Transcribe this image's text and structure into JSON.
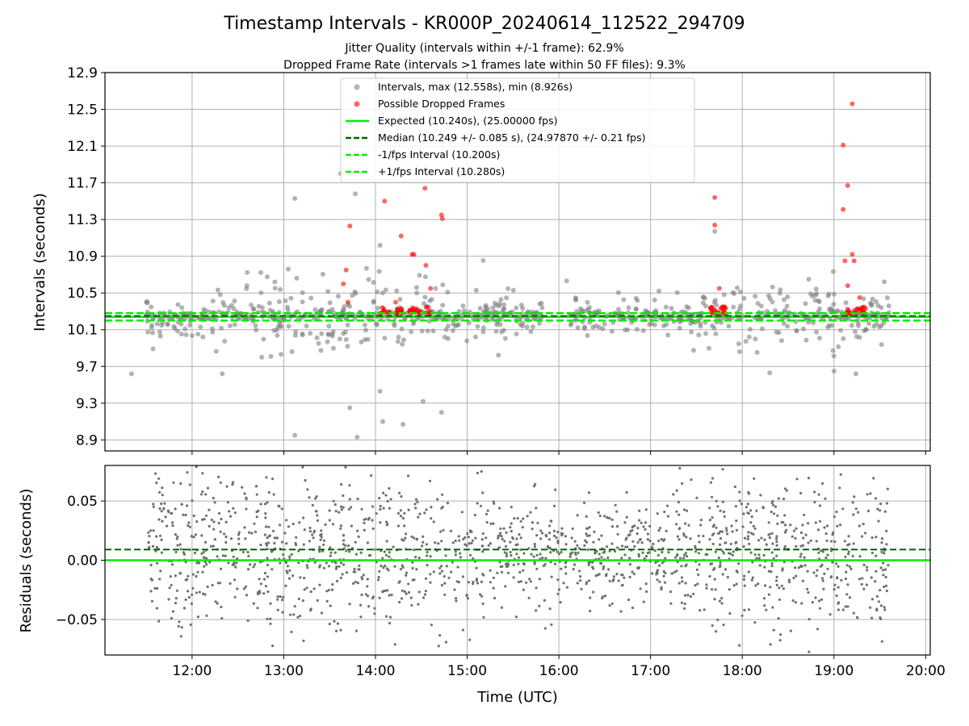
{
  "chart_data": [
    {
      "type": "scatter",
      "title": "Timestamp Intervals - KR000P_20240614_112522_294709",
      "subtitle_1": "Jitter Quality (intervals within +/-1 frame): 62.9%",
      "subtitle_2": "Dropped Frame Rate (intervals >1 frames late within 50 FF files): 9.3%",
      "ylabel": "Intervals (seconds)",
      "ylim": [
        8.78,
        12.9
      ],
      "yticks": [
        8.9,
        9.3,
        9.7,
        10.1,
        10.5,
        10.9,
        11.3,
        11.7,
        12.1,
        12.5,
        12.9
      ],
      "ytick_labels": [
        "8.9",
        "9.3",
        "9.7",
        "10.1",
        "10.5",
        "10.9",
        "11.3",
        "11.7",
        "12.1",
        "12.5",
        "12.9"
      ],
      "xlim_hours": [
        11.05,
        20.05
      ],
      "grid": true,
      "legend_placement": "top-center",
      "legend": [
        {
          "label": "Intervals, max (12.558s), min (8.926s)",
          "marker": "circle",
          "color": "#808080"
        },
        {
          "label": "Possible Dropped Frames",
          "marker": "circle",
          "color": "#ff0000"
        },
        {
          "label": "Expected (10.240s), (25.00000 fps)",
          "marker": "line-solid",
          "color": "#00ee00"
        },
        {
          "label": "Median (10.249 +/- 0.085 s), (24.97870 +/- 0.21 fps)",
          "marker": "line-dashed",
          "color": "#006400"
        },
        {
          "label": "-1/fps Interval (10.200s)",
          "marker": "line-dashed",
          "color": "#00ee00"
        },
        {
          "label": "+1/fps Interval (10.280s)",
          "marker": "line-dashed",
          "color": "#00ee00"
        }
      ],
      "reference_lines": {
        "expected": 10.24,
        "median": 10.249,
        "minus_one_fps": 10.2,
        "plus_one_fps": 10.28
      },
      "series": [
        {
          "name": "Intervals, max (12.558s), min (8.926s)",
          "color": "#808080",
          "approximate": true,
          "notable_points": [
            {
              "x_hour": 13.12,
              "y": 11.53
            },
            {
              "x_hour": 13.12,
              "y": 8.95
            },
            {
              "x_hour": 13.8,
              "y": 8.93
            },
            {
              "x_hour": 13.78,
              "y": 11.58
            },
            {
              "x_hour": 13.62,
              "y": 11.8
            },
            {
              "x_hour": 14.05,
              "y": 11.02
            },
            {
              "x_hour": 14.05,
              "y": 9.43
            },
            {
              "x_hour": 14.08,
              "y": 9.1
            },
            {
              "x_hour": 14.3,
              "y": 9.07
            },
            {
              "x_hour": 14.52,
              "y": 9.32
            },
            {
              "x_hour": 14.72,
              "y": 9.2
            },
            {
              "x_hour": 13.72,
              "y": 9.25
            },
            {
              "x_hour": 17.7,
              "y": 11.17
            },
            {
              "x_hour": 18.3,
              "y": 9.63
            },
            {
              "x_hour": 19.0,
              "y": 9.65
            },
            {
              "x_hour": 19.24,
              "y": 9.62
            },
            {
              "x_hour": 11.34,
              "y": 9.62
            },
            {
              "x_hour": 12.33,
              "y": 9.62
            }
          ]
        },
        {
          "name": "Possible Dropped Frames",
          "color": "#ff0000",
          "approximate": true,
          "points": [
            {
              "x_hour": 13.72,
              "y": 11.23
            },
            {
              "x_hour": 13.68,
              "y": 10.75
            },
            {
              "x_hour": 13.65,
              "y": 10.6
            },
            {
              "x_hour": 13.7,
              "y": 10.4
            },
            {
              "x_hour": 14.1,
              "y": 11.5
            },
            {
              "x_hour": 14.22,
              "y": 10.4
            },
            {
              "x_hour": 14.28,
              "y": 11.12
            },
            {
              "x_hour": 14.4,
              "y": 10.92
            },
            {
              "x_hour": 14.42,
              "y": 10.92
            },
            {
              "x_hour": 14.52,
              "y": 11.84
            },
            {
              "x_hour": 14.54,
              "y": 11.64
            },
            {
              "x_hour": 14.55,
              "y": 10.8
            },
            {
              "x_hour": 14.72,
              "y": 11.35
            },
            {
              "x_hour": 14.73,
              "y": 11.31
            },
            {
              "x_hour": 14.6,
              "y": 10.55
            },
            {
              "x_hour": 17.7,
              "y": 11.54
            },
            {
              "x_hour": 17.7,
              "y": 11.24
            },
            {
              "x_hour": 17.75,
              "y": 10.55
            },
            {
              "x_hour": 19.1,
              "y": 12.11
            },
            {
              "x_hour": 19.1,
              "y": 11.41
            },
            {
              "x_hour": 19.15,
              "y": 11.67
            },
            {
              "x_hour": 19.2,
              "y": 12.56
            },
            {
              "x_hour": 19.12,
              "y": 10.85
            },
            {
              "x_hour": 19.2,
              "y": 10.92
            },
            {
              "x_hour": 19.22,
              "y": 10.85
            },
            {
              "x_hour": 19.15,
              "y": 10.58
            },
            {
              "x_hour": 19.28,
              "y": 10.45
            }
          ]
        }
      ]
    },
    {
      "type": "scatter",
      "ylabel": "Residuals (seconds)",
      "xlabel": "Time (UTC)",
      "ylim": [
        -0.08,
        0.08
      ],
      "yticks": [
        -0.05,
        0.0,
        0.05
      ],
      "ytick_labels": [
        "−0.05",
        "0.00",
        "0.05"
      ],
      "xlim_hours": [
        11.05,
        20.05
      ],
      "xticks_hours": [
        12,
        13,
        14,
        15,
        16,
        17,
        18,
        19,
        20
      ],
      "xtick_labels": [
        "12:00",
        "13:00",
        "14:00",
        "15:00",
        "16:00",
        "17:00",
        "18:00",
        "19:00",
        "20:00"
      ],
      "grid": true,
      "reference_lines": {
        "zero": 0.0,
        "median_offset": 0.009
      },
      "series": [
        {
          "name": "",
          "color": "#707070",
          "approximate": true,
          "description_range_hours": [
            11.5,
            19.6
          ]
        }
      ]
    }
  ],
  "colors": {
    "interval_gray": "#808080",
    "dropped_red": "#ff0000",
    "expected_green": "#00ee00",
    "median_darkgreen": "#006400",
    "residual_gray": "#707070"
  }
}
